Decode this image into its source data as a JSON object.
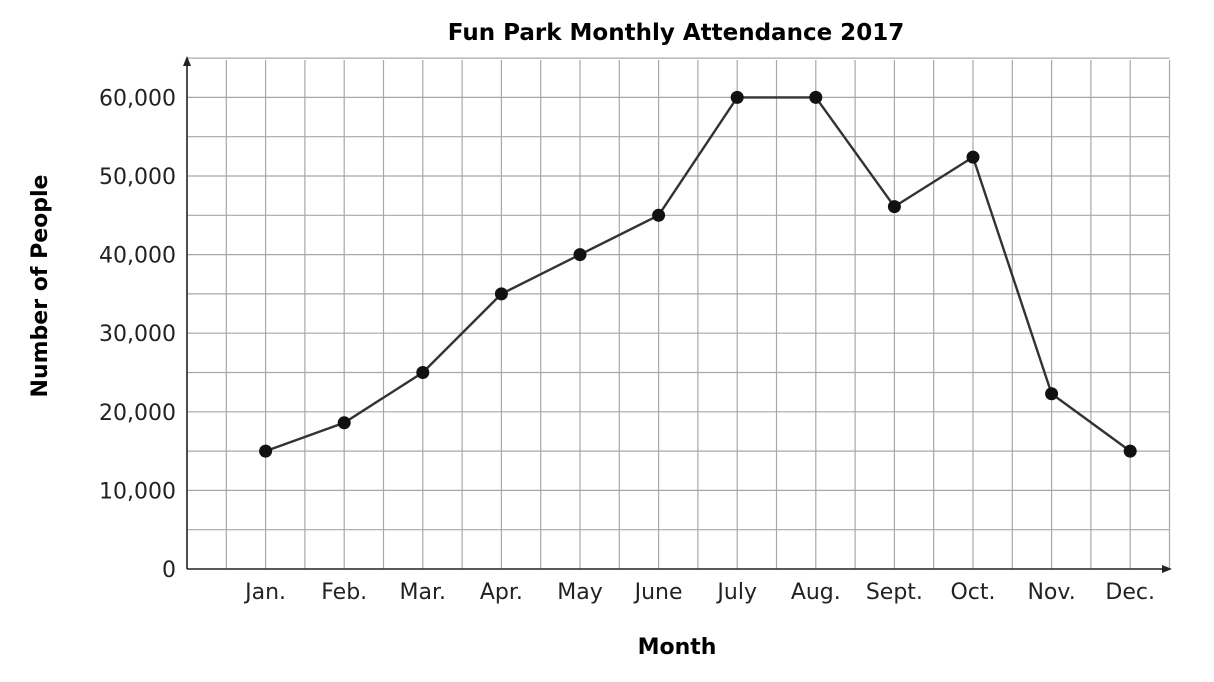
{
  "chart_data": {
    "type": "line",
    "title": "Fun Park Monthly Attendance 2017",
    "xlabel": "Month",
    "ylabel": "Number of People",
    "categories": [
      "Jan.",
      "Feb.",
      "Mar.",
      "Apr.",
      "May",
      "June",
      "July",
      "Aug.",
      "Sept.",
      "Oct.",
      "Nov.",
      "Dec."
    ],
    "series": [
      {
        "values": [
          15000,
          18600,
          25000,
          35000,
          40000,
          45000,
          60000,
          60000,
          46100,
          52400,
          22300,
          15000
        ]
      }
    ],
    "ylim": [
      0,
      65000
    ],
    "yticks": [
      0,
      10000,
      20000,
      30000,
      40000,
      50000,
      60000
    ],
    "ytick_labels": [
      "0",
      "10,000",
      "20,000",
      "30,000",
      "40,000",
      "50,000",
      "60,000"
    ],
    "grid": true,
    "legend": "none",
    "colors": {
      "line": "#333333",
      "marker": "#111111",
      "grid": "#a8a8a8"
    }
  }
}
